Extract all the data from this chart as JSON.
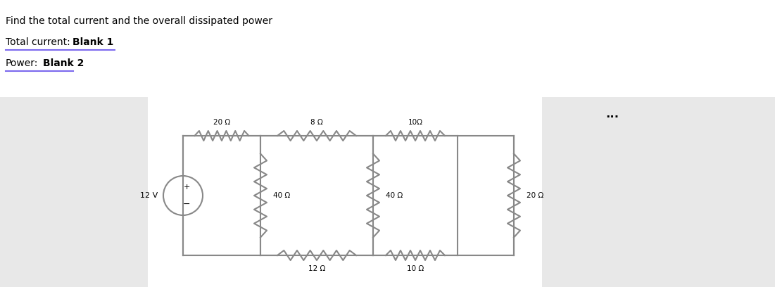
{
  "title_line1": "Find the total current and the overall dissipated power",
  "label_total_current": "Total current:",
  "label_blank1": "Blank 1",
  "label_power": "Power:",
  "label_blank2": "Blank 2",
  "bg_color": "#f0f0f0",
  "dots_text": "...",
  "resistors": {
    "R_top1": "20 Ω",
    "R_top2": "8 Ω",
    "R_top3": "10Ω",
    "R_left1": "40 Ω",
    "R_mid1": "40 Ω",
    "R_right1": "20 Ω",
    "R_bot1": "12 Ω",
    "R_bot2": "10 Ω"
  },
  "voltage": "12 V"
}
